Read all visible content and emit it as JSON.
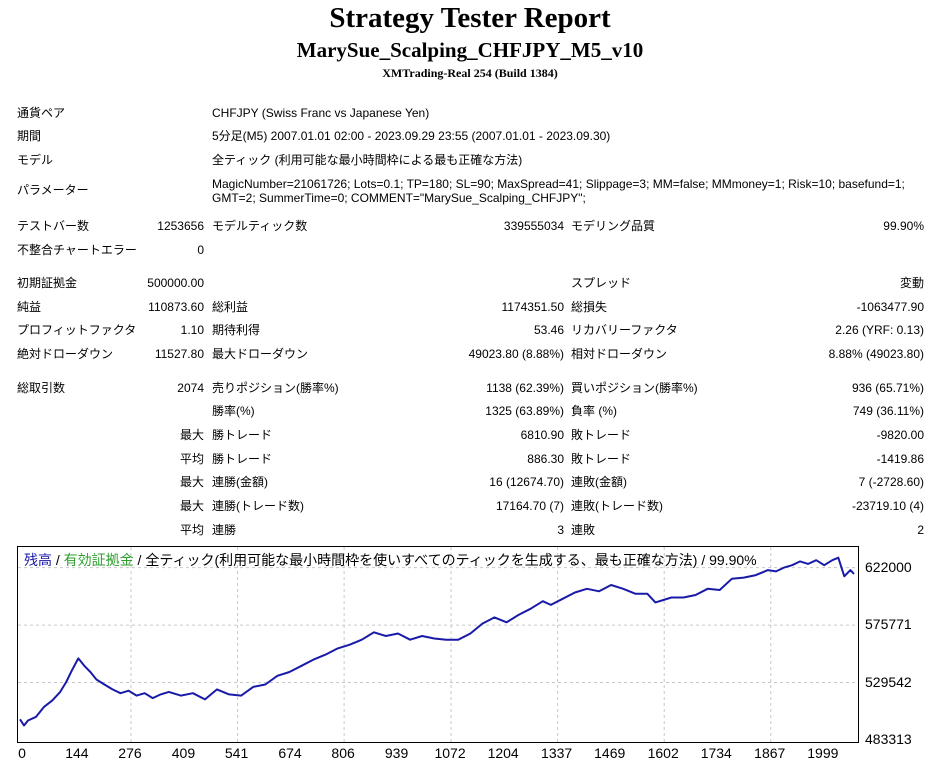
{
  "report": {
    "title": "Strategy Tester Report",
    "ea_name": "MarySue_Scalping_CHFJPY_M5_v10",
    "server": "XMTrading-Real 254 (Build 1384)"
  },
  "info": {
    "symbol_label": "通貨ペア",
    "symbol_value": "CHFJPY (Swiss Franc vs Japanese Yen)",
    "period_label": "期間",
    "period_value": "5分足(M5) 2007.01.01 02:00 - 2023.09.29 23:55 (2007.01.01 - 2023.09.30)",
    "model_label": "モデル",
    "model_value": "全ティック (利用可能な最小時間枠による最も正確な方法)",
    "params_label": "パラメーター",
    "params_value": "MagicNumber=21061726; Lots=0.1; TP=180; SL=90; MaxSpread=41; Slippage=3; MM=false; MMmoney=1; Risk=10; basefund=1; GMT=2; SummerTime=0; COMMENT=\"MarySue_Scalping_CHFJPY\";"
  },
  "stats": {
    "bars_label": "テストバー数",
    "bars_value": "1253656",
    "ticks_label": "モデルティック数",
    "ticks_value": "339555034",
    "quality_label": "モデリング品質",
    "quality_value": "99.90%",
    "mismatch_label": "不整合チャートエラー",
    "mismatch_value": "0",
    "deposit_label": "初期証拠金",
    "deposit_value": "500000.00",
    "spread_label": "スプレッド",
    "spread_value": "変動",
    "net_label": "純益",
    "net_value": "110873.60",
    "gross_profit_label": "総利益",
    "gross_profit_value": "1174351.50",
    "gross_loss_label": "総損失",
    "gross_loss_value": "-1063477.90",
    "pf_label": "プロフィットファクタ",
    "pf_value": "1.10",
    "expected_label": "期待利得",
    "expected_value": "53.46",
    "recovery_label": "リカバリーファクタ",
    "recovery_value": "2.26 (YRF: 0.13)",
    "abs_dd_label": "絶対ドローダウン",
    "abs_dd_value": "11527.80",
    "max_dd_label": "最大ドローダウン",
    "max_dd_value": "49023.80 (8.88%)",
    "rel_dd_label": "相対ドローダウン",
    "rel_dd_value": "8.88% (49023.80)",
    "trades_label": "総取引数",
    "trades_value": "2074",
    "short_label": "売りポジション(勝率%)",
    "short_value": "1138 (62.39%)",
    "long_label": "買いポジション(勝率%)",
    "long_value": "936 (65.71%)",
    "winrate_label": "勝率(%)",
    "winrate_value": "1325 (63.89%)",
    "lossrate_label": "負率 (%)",
    "lossrate_value": "749 (36.11%)",
    "max_label": "最大",
    "avg_label": "平均",
    "largest_win_label": "勝トレード",
    "largest_win_value": "6810.90",
    "largest_loss_label": "敗トレード",
    "largest_loss_value": "-9820.00",
    "avg_win_label": "勝トレード",
    "avg_win_value": "886.30",
    "avg_loss_label": "敗トレード",
    "avg_loss_value": "-1419.86",
    "max_consec_win_label": "連勝(金額)",
    "max_consec_win_value": "16 (12674.70)",
    "max_consec_loss_label": "連敗(金額)",
    "max_consec_loss_value": "7 (-2728.60)",
    "max_consec_profit_label": "連勝(トレード数)",
    "max_consec_profit_value": "17164.70 (7)",
    "max_consec_lossamt_label": "連敗(トレード数)",
    "max_consec_lossamt_value": "-23719.10 (4)",
    "avg_consec_win_label": "連勝",
    "avg_consec_win_value": "3",
    "avg_consec_loss_label": "連敗",
    "avg_consec_loss_value": "2"
  },
  "chart_caption": {
    "balance": "残高",
    "sep1": " / ",
    "equity": "有効証拠金",
    "rest": " / 全ティック(利用可能な最小時間枠を使いすべてのティックを生成する、最も正確な方法) / 99.90%"
  },
  "colors": {
    "balance_line": "#1a1aa8",
    "equity_text": "#2e9e2e",
    "grid": "#c8c8c8"
  },
  "chart_data": {
    "type": "line",
    "title": "",
    "xlabel": "",
    "ylabel": "",
    "x_ticks": [
      "0",
      "144",
      "276",
      "409",
      "541",
      "674",
      "806",
      "939",
      "1072",
      "1204",
      "1337",
      "1469",
      "1602",
      "1734",
      "1867",
      "1999"
    ],
    "y_ticks": [
      "622000",
      "575771",
      "529542",
      "483313"
    ],
    "xlim": [
      0,
      2074
    ],
    "ylim": [
      483313,
      637000
    ],
    "grid": true,
    "series": [
      {
        "name": "残高",
        "x": [
          0,
          10,
          20,
          40,
          60,
          80,
          100,
          115,
          130,
          145,
          160,
          175,
          190,
          210,
          230,
          250,
          270,
          290,
          310,
          330,
          350,
          370,
          400,
          430,
          460,
          490,
          520,
          550,
          580,
          610,
          640,
          670,
          700,
          730,
          760,
          790,
          820,
          850,
          880,
          910,
          940,
          970,
          1000,
          1030,
          1060,
          1090,
          1120,
          1150,
          1180,
          1210,
          1240,
          1270,
          1300,
          1320,
          1350,
          1380,
          1410,
          1440,
          1470,
          1500,
          1530,
          1560,
          1580,
          1600,
          1620,
          1650,
          1680,
          1710,
          1740,
          1770,
          1800,
          1830,
          1860,
          1880,
          1900,
          1920,
          1940,
          1960,
          1980,
          2000,
          2020,
          2035,
          2050,
          2065,
          2074
        ],
        "values": [
          500000,
          495000,
          499000,
          502000,
          510000,
          515000,
          522000,
          530000,
          540000,
          549000,
          543000,
          538000,
          532000,
          528000,
          524000,
          521000,
          523000,
          519000,
          521000,
          517000,
          520000,
          522000,
          519000,
          521000,
          516000,
          524000,
          520000,
          519000,
          526000,
          528000,
          535000,
          538000,
          543000,
          548000,
          552000,
          557000,
          560000,
          564000,
          570000,
          567000,
          569000,
          564000,
          567000,
          565000,
          564000,
          564000,
          569000,
          577000,
          582000,
          578000,
          584000,
          589000,
          595000,
          592000,
          597000,
          602000,
          605000,
          603000,
          608000,
          605000,
          601000,
          601000,
          594000,
          596000,
          598000,
          598000,
          600000,
          605000,
          604000,
          613000,
          614000,
          616000,
          620000,
          619000,
          622000,
          624000,
          627000,
          625000,
          628000,
          624000,
          628000,
          630000,
          615000,
          620000,
          617000
        ]
      }
    ]
  }
}
